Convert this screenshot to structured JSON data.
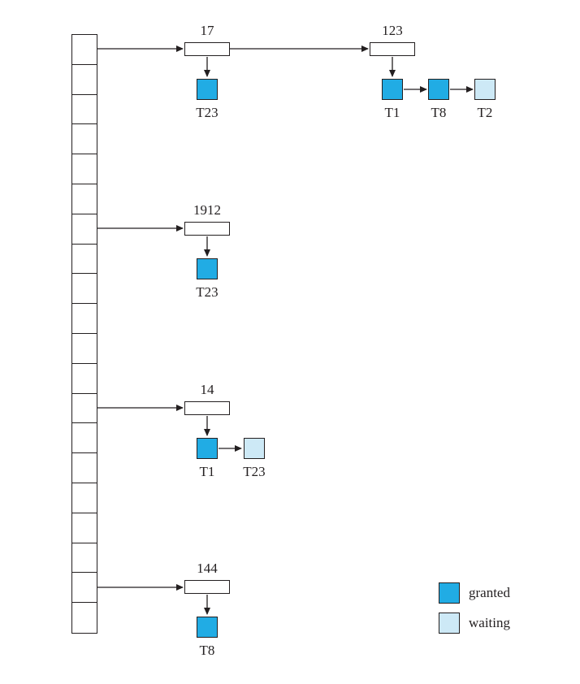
{
  "diagram": {
    "colors": {
      "granted": "#21ACE4",
      "waiting": "#CDE9F6",
      "border": "#231F20"
    },
    "hash_table": {
      "cell_count": 20
    },
    "chains": [
      {
        "records": [
          {
            "id": "17",
            "transactions": [
              {
                "label": "T23",
                "status": "granted"
              }
            ]
          },
          {
            "id": "123",
            "transactions": [
              {
                "label": "T1",
                "status": "granted"
              },
              {
                "label": "T8",
                "status": "granted"
              },
              {
                "label": "T2",
                "status": "waiting"
              }
            ]
          }
        ]
      },
      {
        "records": [
          {
            "id": "1912",
            "transactions": [
              {
                "label": "T23",
                "status": "granted"
              }
            ]
          }
        ]
      },
      {
        "records": [
          {
            "id": "14",
            "transactions": [
              {
                "label": "T1",
                "status": "granted"
              },
              {
                "label": "T23",
                "status": "waiting"
              }
            ]
          }
        ]
      },
      {
        "records": [
          {
            "id": "144",
            "transactions": [
              {
                "label": "T8",
                "status": "granted"
              }
            ]
          }
        ]
      }
    ],
    "legend": [
      {
        "label": "granted",
        "status": "granted"
      },
      {
        "label": "waiting",
        "status": "waiting"
      }
    ]
  }
}
